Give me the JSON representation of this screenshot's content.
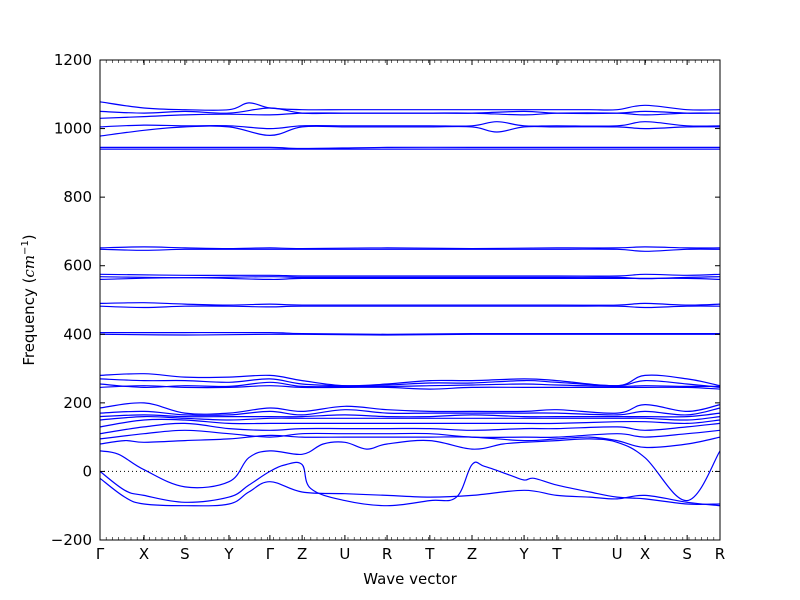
{
  "chart_data": {
    "type": "line",
    "xlabel": "Wave vector",
    "ylabel_text": "Frequency (",
    "ylabel_unit": "cm",
    "ylabel_exp": "−1",
    "ylabel_close": ")",
    "ylim": [
      -200,
      1200
    ],
    "yticks": [
      -200,
      0,
      200,
      400,
      600,
      800,
      1000,
      1200
    ],
    "xticks": [
      {
        "label": "Γ",
        "pos": 0.0
      },
      {
        "label": "X",
        "pos": 0.071
      },
      {
        "label": "S",
        "pos": 0.137
      },
      {
        "label": "Y",
        "pos": 0.208
      },
      {
        "label": "Γ",
        "pos": 0.274
      },
      {
        "label": "Z",
        "pos": 0.326
      },
      {
        "label": "U",
        "pos": 0.395
      },
      {
        "label": "R",
        "pos": 0.463
      },
      {
        "label": "T",
        "pos": 0.532
      },
      {
        "label": "Z",
        "pos": 0.6
      },
      {
        "label": "Y",
        "pos": 0.684
      },
      {
        "label": "T",
        "pos": 0.737
      },
      {
        "label": "U",
        "pos": 0.834
      },
      {
        "label": "X",
        "pos": 0.879
      },
      {
        "label": "S",
        "pos": 0.947
      },
      {
        "label": "R",
        "pos": 1.0
      }
    ],
    "zero_line": true,
    "series_color": "#0000ff",
    "bands": [
      {
        "x": [
          0,
          0.071,
          0.137,
          0.208,
          0.24,
          0.274,
          0.326,
          0.395,
          0.463,
          0.532,
          0.6,
          0.684,
          0.737,
          0.79,
          0.834,
          0.879,
          0.947,
          1
        ],
        "y": [
          1078,
          1060,
          1055,
          1055,
          1075,
          1060,
          1055,
          1055,
          1055,
          1055,
          1055,
          1055,
          1055,
          1055,
          1055,
          1068,
          1055,
          1055
        ]
      },
      {
        "x": [
          0,
          0.071,
          0.137,
          0.208,
          0.274,
          0.326,
          0.395,
          0.463,
          0.532,
          0.6,
          0.684,
          0.737,
          0.834,
          0.879,
          0.947,
          1
        ],
        "y": [
          1050,
          1045,
          1050,
          1045,
          1060,
          1045,
          1045,
          1045,
          1045,
          1045,
          1050,
          1045,
          1045,
          1050,
          1045,
          1045
        ]
      },
      {
        "x": [
          0,
          0.071,
          0.137,
          0.208,
          0.274,
          0.326,
          0.395,
          0.463,
          0.532,
          0.6,
          0.684,
          0.737,
          0.834,
          0.879,
          0.947,
          1
        ],
        "y": [
          1030,
          1035,
          1040,
          1042,
          1040,
          1045,
          1045,
          1045,
          1045,
          1045,
          1040,
          1045,
          1045,
          1040,
          1045,
          1045
        ]
      },
      {
        "x": [
          0,
          0.071,
          0.137,
          0.208,
          0.274,
          0.326,
          0.395,
          0.463,
          0.532,
          0.6,
          0.64,
          0.684,
          0.737,
          0.834,
          0.879,
          0.947,
          1
        ],
        "y": [
          1005,
          1010,
          1008,
          1008,
          1000,
          1008,
          1008,
          1008,
          1008,
          1008,
          1020,
          1008,
          1008,
          1008,
          1020,
          1008,
          1008
        ]
      },
      {
        "x": [
          0,
          0.071,
          0.137,
          0.208,
          0.274,
          0.326,
          0.395,
          0.463,
          0.532,
          0.6,
          0.64,
          0.684,
          0.737,
          0.834,
          0.879,
          0.947,
          1
        ],
        "y": [
          978,
          995,
          1005,
          1005,
          980,
          1005,
          1005,
          1005,
          1005,
          1005,
          990,
          1005,
          1005,
          1005,
          1000,
          1005,
          1005
        ]
      },
      {
        "x": [
          0,
          0.137,
          0.274,
          0.326,
          0.463,
          0.6,
          0.737,
          0.879,
          1
        ],
        "y": [
          945,
          945,
          945,
          942,
          945,
          945,
          945,
          945,
          945
        ]
      },
      {
        "x": [
          0,
          0.137,
          0.274,
          0.326,
          0.463,
          0.6,
          0.737,
          0.879,
          1
        ],
        "y": [
          940,
          940,
          940,
          940,
          940,
          940,
          940,
          940,
          940
        ]
      },
      {
        "x": [
          0,
          0.071,
          0.137,
          0.208,
          0.274,
          0.326,
          0.463,
          0.6,
          0.737,
          0.834,
          0.879,
          0.947,
          1
        ],
        "y": [
          652,
          655,
          652,
          650,
          652,
          650,
          652,
          650,
          652,
          652,
          655,
          652,
          652
        ]
      },
      {
        "x": [
          0,
          0.071,
          0.137,
          0.208,
          0.274,
          0.326,
          0.463,
          0.6,
          0.737,
          0.834,
          0.879,
          0.947,
          1
        ],
        "y": [
          648,
          645,
          648,
          648,
          648,
          648,
          648,
          648,
          648,
          648,
          642,
          648,
          648
        ]
      },
      {
        "x": [
          0,
          0.137,
          0.274,
          0.326,
          0.463,
          0.6,
          0.737,
          0.834,
          0.879,
          0.947,
          1
        ],
        "y": [
          575,
          572,
          572,
          570,
          570,
          570,
          570,
          570,
          575,
          572,
          575
        ]
      },
      {
        "x": [
          0,
          0.137,
          0.274,
          0.326,
          0.463,
          0.6,
          0.737,
          0.834,
          0.879,
          0.947,
          1
        ],
        "y": [
          568,
          565,
          568,
          566,
          566,
          566,
          566,
          566,
          562,
          566,
          568
        ]
      },
      {
        "x": [
          0,
          0.137,
          0.274,
          0.326,
          0.463,
          0.6,
          0.737,
          0.834,
          0.879,
          0.947,
          1
        ],
        "y": [
          560,
          565,
          560,
          563,
          563,
          563,
          563,
          563,
          563,
          563,
          560
        ]
      },
      {
        "x": [
          0,
          0.071,
          0.137,
          0.208,
          0.274,
          0.326,
          0.463,
          0.6,
          0.737,
          0.834,
          0.879,
          0.947,
          1
        ],
        "y": [
          490,
          492,
          488,
          485,
          488,
          485,
          485,
          485,
          485,
          485,
          490,
          485,
          488
        ]
      },
      {
        "x": [
          0,
          0.071,
          0.137,
          0.208,
          0.274,
          0.326,
          0.463,
          0.6,
          0.737,
          0.834,
          0.879,
          0.947,
          1
        ],
        "y": [
          482,
          478,
          482,
          482,
          480,
          482,
          482,
          482,
          482,
          482,
          478,
          482,
          482
        ]
      },
      {
        "x": [
          0,
          0.137,
          0.274,
          0.326,
          0.463,
          0.6,
          0.737,
          0.879,
          1
        ],
        "y": [
          405,
          405,
          405,
          402,
          400,
          402,
          402,
          402,
          402
        ]
      },
      {
        "x": [
          0,
          0.137,
          0.274,
          0.326,
          0.463,
          0.6,
          0.737,
          0.879,
          1
        ],
        "y": [
          400,
          398,
          400,
          400,
          398,
          400,
          400,
          400,
          400
        ]
      },
      {
        "x": [
          0,
          0.071,
          0.137,
          0.208,
          0.274,
          0.326,
          0.395,
          0.463,
          0.532,
          0.6,
          0.684,
          0.737,
          0.834,
          0.879,
          0.947,
          1
        ],
        "y": [
          280,
          285,
          275,
          275,
          280,
          265,
          250,
          255,
          265,
          265,
          270,
          265,
          250,
          280,
          270,
          250
        ]
      },
      {
        "x": [
          0,
          0.071,
          0.137,
          0.208,
          0.274,
          0.326,
          0.395,
          0.463,
          0.532,
          0.6,
          0.684,
          0.737,
          0.834,
          0.879,
          0.947,
          1
        ],
        "y": [
          270,
          265,
          265,
          260,
          270,
          255,
          250,
          252,
          258,
          258,
          265,
          260,
          250,
          265,
          255,
          245
        ]
      },
      {
        "x": [
          0,
          0.071,
          0.137,
          0.208,
          0.274,
          0.326,
          0.395,
          0.463,
          0.532,
          0.6,
          0.684,
          0.737,
          0.834,
          0.879,
          0.947,
          1
        ],
        "y": [
          255,
          245,
          250,
          248,
          260,
          248,
          248,
          248,
          250,
          252,
          255,
          252,
          248,
          250,
          248,
          248
        ]
      },
      {
        "x": [
          0,
          0.071,
          0.137,
          0.208,
          0.274,
          0.326,
          0.395,
          0.463,
          0.532,
          0.6,
          0.684,
          0.737,
          0.834,
          0.879,
          0.947,
          1
        ],
        "y": [
          245,
          250,
          245,
          245,
          250,
          245,
          245,
          245,
          240,
          245,
          245,
          245,
          245,
          245,
          245,
          240
        ]
      },
      {
        "x": [
          0,
          0.071,
          0.137,
          0.208,
          0.274,
          0.326,
          0.395,
          0.463,
          0.532,
          0.6,
          0.684,
          0.737,
          0.834,
          0.879,
          0.947,
          1
        ],
        "y": [
          185,
          200,
          170,
          170,
          185,
          175,
          190,
          180,
          175,
          175,
          175,
          180,
          170,
          195,
          175,
          195
        ]
      },
      {
        "x": [
          0,
          0.071,
          0.137,
          0.208,
          0.274,
          0.326,
          0.395,
          0.463,
          0.532,
          0.6,
          0.684,
          0.737,
          0.834,
          0.879,
          0.947,
          1
        ],
        "y": [
          170,
          175,
          165,
          165,
          175,
          165,
          180,
          170,
          170,
          170,
          170,
          170,
          165,
          175,
          165,
          185
        ]
      },
      {
        "x": [
          0,
          0.071,
          0.137,
          0.208,
          0.274,
          0.326,
          0.395,
          0.463,
          0.532,
          0.6,
          0.684,
          0.737,
          0.834,
          0.879,
          0.947,
          1
        ],
        "y": [
          160,
          165,
          160,
          160,
          160,
          160,
          165,
          160,
          160,
          165,
          160,
          160,
          160,
          160,
          160,
          170
        ]
      },
      {
        "x": [
          0,
          0.071,
          0.137,
          0.208,
          0.274,
          0.326,
          0.395,
          0.463,
          0.532,
          0.6,
          0.684,
          0.737,
          0.834,
          0.879,
          0.947,
          1
        ],
        "y": [
          150,
          160,
          155,
          150,
          155,
          155,
          155,
          155,
          155,
          155,
          155,
          155,
          155,
          155,
          150,
          160
        ]
      },
      {
        "x": [
          0,
          0.071,
          0.137,
          0.208,
          0.274,
          0.326,
          0.395,
          0.463,
          0.532,
          0.6,
          0.684,
          0.737,
          0.834,
          0.879,
          0.947,
          1
        ],
        "y": [
          130,
          150,
          150,
          140,
          140,
          140,
          140,
          140,
          140,
          140,
          140,
          140,
          145,
          145,
          140,
          150
        ]
      },
      {
        "x": [
          0,
          0.071,
          0.137,
          0.208,
          0.274,
          0.326,
          0.395,
          0.463,
          0.532,
          0.6,
          0.684,
          0.737,
          0.834,
          0.879,
          0.947,
          1
        ],
        "y": [
          110,
          130,
          140,
          125,
          120,
          125,
          125,
          125,
          125,
          120,
          125,
          125,
          130,
          120,
          130,
          140
        ]
      },
      {
        "x": [
          0,
          0.071,
          0.137,
          0.208,
          0.274,
          0.326,
          0.395,
          0.463,
          0.532,
          0.6,
          0.684,
          0.737,
          0.834,
          0.879,
          0.947,
          1
        ],
        "y": [
          95,
          110,
          120,
          110,
          100,
          110,
          110,
          110,
          110,
          100,
          100,
          100,
          110,
          100,
          110,
          120
        ]
      },
      {
        "x": [
          0,
          0.04,
          0.071,
          0.137,
          0.208,
          0.274,
          0.326,
          0.395,
          0.463,
          0.532,
          0.6,
          0.684,
          0.737,
          0.79,
          0.834,
          0.879,
          0.947,
          1
        ],
        "y": [
          80,
          90,
          85,
          90,
          95,
          105,
          100,
          100,
          100,
          100,
          100,
          90,
          95,
          100,
          90,
          70,
          80,
          100
        ]
      },
      {
        "x": [
          0,
          0.03,
          0.071,
          0.137,
          0.208,
          0.24,
          0.274,
          0.326,
          0.36,
          0.395,
          0.43,
          0.463,
          0.532,
          0.6,
          0.65,
          0.684,
          0.737,
          0.79,
          0.834,
          0.879,
          0.947,
          1
        ],
        "y": [
          60,
          50,
          5,
          -45,
          -30,
          40,
          60,
          50,
          80,
          85,
          65,
          80,
          90,
          65,
          80,
          85,
          90,
          95,
          85,
          40,
          -85,
          60
        ]
      },
      {
        "x": [
          0,
          0.04,
          0.071,
          0.137,
          0.208,
          0.24,
          0.274,
          0.3,
          0.326,
          0.34,
          0.395,
          0.463,
          0.532,
          0.575,
          0.6,
          0.62,
          0.66,
          0.684,
          0.7,
          0.737,
          0.79,
          0.834,
          0.879,
          0.947,
          1
        ],
        "y": [
          0,
          -55,
          -70,
          -90,
          -75,
          -40,
          0,
          20,
          20,
          -50,
          -85,
          -100,
          -85,
          -75,
          20,
          15,
          -10,
          -25,
          -20,
          -40,
          -60,
          -75,
          -80,
          -95,
          -95
        ]
      },
      {
        "x": [
          0,
          0.04,
          0.071,
          0.137,
          0.208,
          0.24,
          0.274,
          0.326,
          0.395,
          0.463,
          0.532,
          0.6,
          0.684,
          0.737,
          0.79,
          0.834,
          0.879,
          0.947,
          1
        ],
        "y": [
          -20,
          -75,
          -95,
          -100,
          -95,
          -60,
          -30,
          -60,
          -65,
          -70,
          -75,
          -70,
          -55,
          -70,
          -75,
          -80,
          -70,
          -90,
          -100
        ]
      }
    ]
  }
}
